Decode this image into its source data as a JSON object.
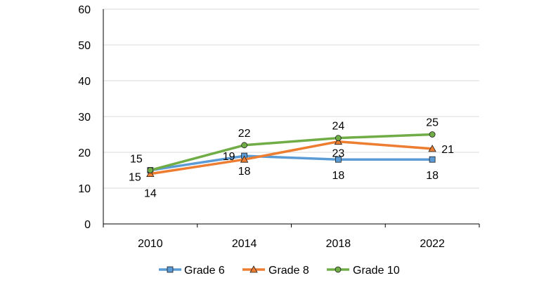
{
  "chart_data": {
    "type": "line",
    "title": "",
    "xlabel": "",
    "ylabel": "",
    "categories": [
      "2010",
      "2014",
      "2018",
      "2022"
    ],
    "ylim": [
      0,
      60
    ],
    "yticks": [
      0,
      10,
      20,
      30,
      40,
      50,
      60
    ],
    "grid": true,
    "legend_position": "bottom",
    "series": [
      {
        "name": "Grade 6",
        "values": [
          15,
          19,
          18,
          18
        ],
        "color": "#5B9BD5",
        "marker": "square"
      },
      {
        "name": "Grade 8",
        "values": [
          14,
          18,
          23,
          21
        ],
        "color": "#ED7D31",
        "marker": "triangle"
      },
      {
        "name": "Grade 10",
        "values": [
          15,
          22,
          24,
          25
        ],
        "color": "#70AD47",
        "marker": "circle"
      }
    ]
  }
}
